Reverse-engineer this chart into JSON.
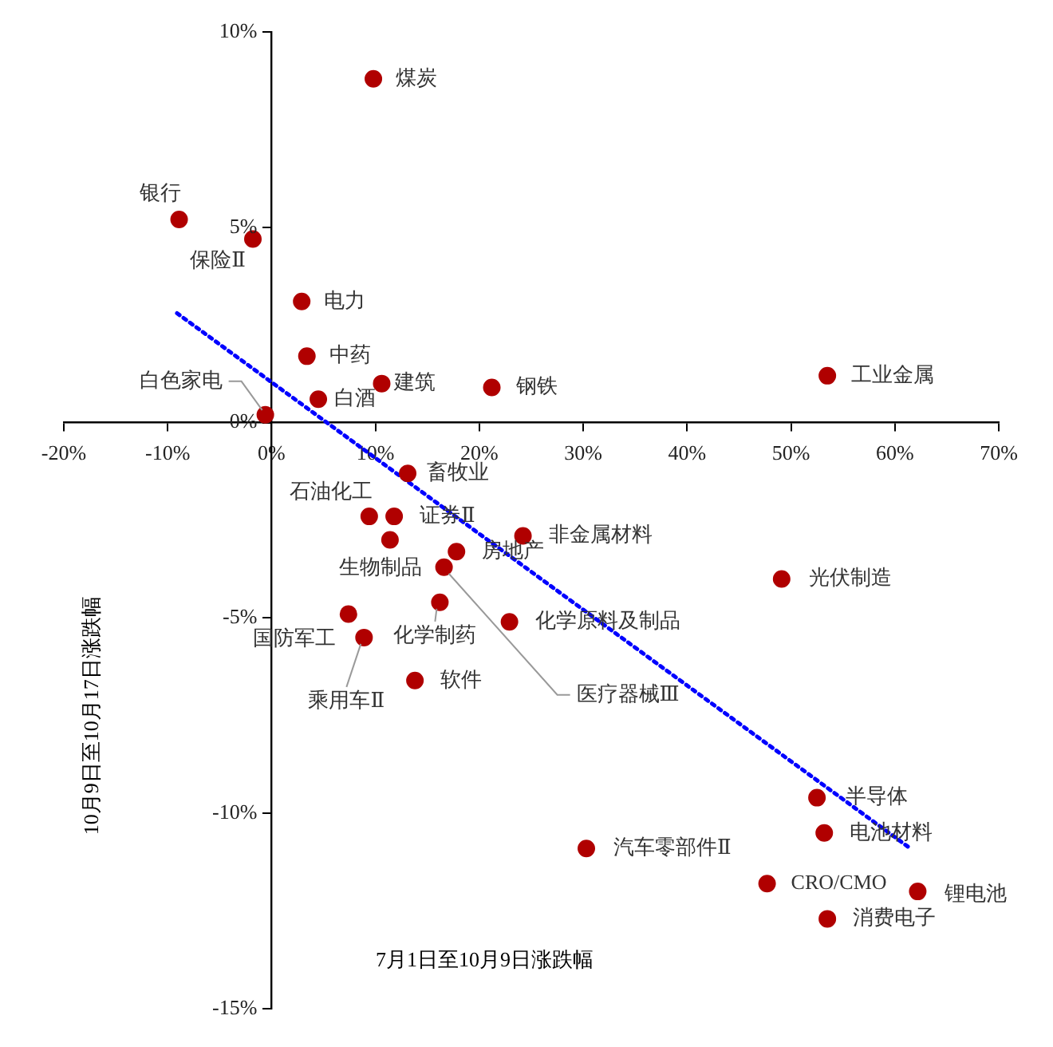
{
  "chart_data": {
    "type": "scatter",
    "xlabel": "7月1日至10月9日涨跌幅",
    "ylabel": "10月9日至10月17日涨跌幅",
    "xlim": [
      -20,
      70
    ],
    "xticks": [
      {
        "value": -20,
        "label": "-20%"
      },
      {
        "value": -10,
        "label": "-10%"
      },
      {
        "value": 0,
        "label": "0%"
      },
      {
        "value": 10,
        "label": "10%"
      },
      {
        "value": 20,
        "label": "20%"
      },
      {
        "value": 30,
        "label": "30%"
      },
      {
        "value": 40,
        "label": "40%"
      },
      {
        "value": 50,
        "label": "50%"
      },
      {
        "value": 60,
        "label": "60%"
      },
      {
        "value": 70,
        "label": "70%"
      }
    ],
    "ylim": [
      -15,
      10
    ],
    "yticks": [
      {
        "value": -15,
        "label": "-15%"
      },
      {
        "value": -10,
        "label": "-10%"
      },
      {
        "value": -5,
        "label": "-5%"
      },
      {
        "value": 0,
        "label": "0%"
      },
      {
        "value": 5,
        "label": "5%"
      },
      {
        "value": 10,
        "label": "10%"
      }
    ],
    "grid": false,
    "legend": false,
    "series": [
      {
        "color": "#b00000",
        "marker": "circle",
        "x": [
          9.8,
          -8.9,
          -1.8,
          2.9,
          3.4,
          4.5,
          10.6,
          21.2,
          53.5,
          -0.6,
          13.1,
          9.4,
          11.8,
          11.4,
          24.2,
          17.8,
          16.6,
          16.2,
          22.9,
          7.4,
          8.9,
          13.8,
          49.1,
          52.5,
          53.2,
          30.3,
          47.7,
          62.2,
          53.5
        ],
        "values": [
          8.8,
          5.2,
          4.7,
          3.1,
          1.7,
          0.6,
          1.0,
          0.9,
          1.2,
          0.2,
          -1.3,
          -2.4,
          -2.4,
          -3.0,
          -2.9,
          -3.3,
          -3.7,
          -4.6,
          -5.1,
          -4.9,
          -5.5,
          -6.6,
          -4.0,
          -9.6,
          -10.5,
          -10.9,
          -11.8,
          -12.0,
          -12.7
        ]
      },
      {
        "type": "line",
        "color": "#0000ff",
        "line_style": "dotted",
        "marker": "none",
        "x": [
          -9.1,
          61.5
        ],
        "values": [
          2.8,
          -10.9
        ]
      }
    ],
    "annotations": [
      {
        "text": "煤炭",
        "x": 9.8,
        "y": 8.8
      },
      {
        "text": "银行",
        "x": -8.9,
        "y": 5.2
      },
      {
        "text": "保险Ⅱ",
        "x": -1.8,
        "y": 4.7
      },
      {
        "text": "电力",
        "x": 2.9,
        "y": 3.1
      },
      {
        "text": "中药",
        "x": 3.4,
        "y": 1.7
      },
      {
        "text": "白酒",
        "x": 4.5,
        "y": 0.6
      },
      {
        "text": "建筑",
        "x": 10.6,
        "y": 1.0
      },
      {
        "text": "钢铁",
        "x": 21.2,
        "y": 0.9
      },
      {
        "text": "工业金属",
        "x": 53.5,
        "y": 1.2
      },
      {
        "text": "白色家电",
        "x": -0.6,
        "y": 0.2
      },
      {
        "text": "畜牧业",
        "x": 13.1,
        "y": -1.3
      },
      {
        "text": "石油化工",
        "x": 9.4,
        "y": -2.4
      },
      {
        "text": "证券Ⅱ",
        "x": 11.8,
        "y": -2.4
      },
      {
        "text": "生物制品",
        "x": 11.4,
        "y": -3.0
      },
      {
        "text": "非金属材料",
        "x": 24.2,
        "y": -2.9
      },
      {
        "text": "房地产",
        "x": 17.8,
        "y": -3.3
      },
      {
        "text": "医疗器械Ⅲ",
        "x": 16.6,
        "y": -3.7
      },
      {
        "text": "化学制药",
        "x": 16.2,
        "y": -4.6
      },
      {
        "text": "化学原料及制品",
        "x": 22.9,
        "y": -5.1
      },
      {
        "text": "国防军工",
        "x": 7.4,
        "y": -4.9
      },
      {
        "text": "乘用车Ⅱ",
        "x": 8.9,
        "y": -5.5
      },
      {
        "text": "软件",
        "x": 13.8,
        "y": -6.6
      },
      {
        "text": "光伏制造",
        "x": 49.1,
        "y": -4.0
      },
      {
        "text": "半导体",
        "x": 52.5,
        "y": -9.6
      },
      {
        "text": "电池材料",
        "x": 53.2,
        "y": -10.5
      },
      {
        "text": "汽车零部件Ⅱ",
        "x": 30.3,
        "y": -10.9
      },
      {
        "text": "CRO/CMO",
        "x": 47.7,
        "y": -11.8
      },
      {
        "text": "锂电池",
        "x": 62.2,
        "y": -12.0
      },
      {
        "text": "消费电子",
        "x": 53.5,
        "y": -12.7
      }
    ]
  }
}
